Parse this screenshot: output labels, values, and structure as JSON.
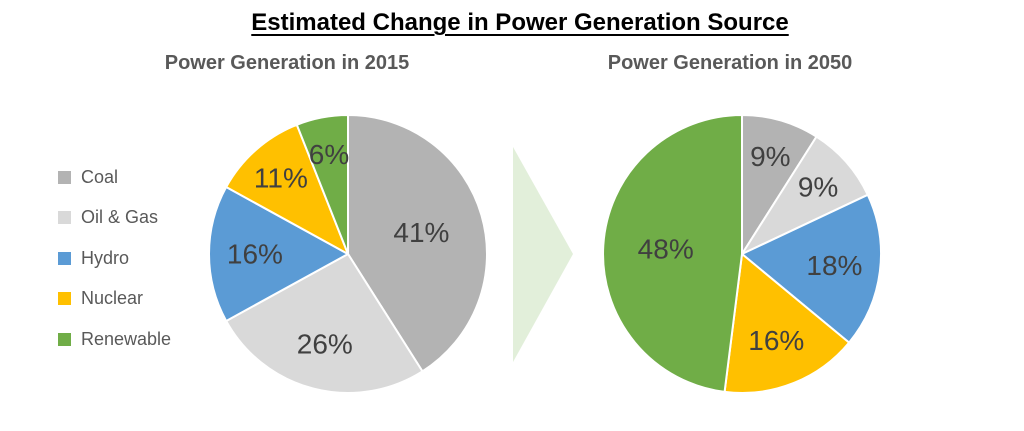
{
  "page": {
    "title": "Estimated Change in Power Generation Source"
  },
  "legend": {
    "items": [
      {
        "label": "Coal",
        "color": "#b3b3b3"
      },
      {
        "label": "Oil & Gas",
        "color": "#d9d9d9"
      },
      {
        "label": "Hydro",
        "color": "#5b9bd5"
      },
      {
        "label": "Nuclear",
        "color": "#ffc000"
      },
      {
        "label": "Renewable",
        "color": "#70ad47"
      }
    ]
  },
  "arrow": {
    "shape": "right-pointing-triangle",
    "color": "#e2efda"
  },
  "colors": {
    "pie_label_text": "#404040",
    "chart_title_text": "#595959",
    "legend_text": "#595959",
    "main_title_text": "#000000"
  },
  "chart_data": [
    {
      "type": "pie",
      "title": "Power Generation in 2015",
      "categories": [
        "Coal",
        "Oil & Gas",
        "Hydro",
        "Nuclear",
        "Renewable"
      ],
      "values": [
        41,
        26,
        16,
        11,
        6
      ],
      "labels": [
        "41%",
        "26%",
        "16%",
        "11%",
        "6%"
      ],
      "colors": [
        "#b3b3b3",
        "#d9d9d9",
        "#5b9bd5",
        "#ffc000",
        "#70ad47"
      ],
      "unit": "percent",
      "start_angle_deg": 0,
      "direction": "clockwise",
      "legend_position": "left"
    },
    {
      "type": "pie",
      "title": "Power Generation in 2050",
      "categories": [
        "Coal",
        "Oil & Gas",
        "Hydro",
        "Nuclear",
        "Renewable"
      ],
      "values": [
        9,
        9,
        18,
        16,
        48
      ],
      "labels": [
        "9%",
        "9%",
        "18%",
        "16%",
        "48%"
      ],
      "colors": [
        "#b3b3b3",
        "#d9d9d9",
        "#5b9bd5",
        "#ffc000",
        "#70ad47"
      ],
      "unit": "percent",
      "start_angle_deg": 0,
      "direction": "clockwise",
      "legend_position": "none"
    }
  ]
}
